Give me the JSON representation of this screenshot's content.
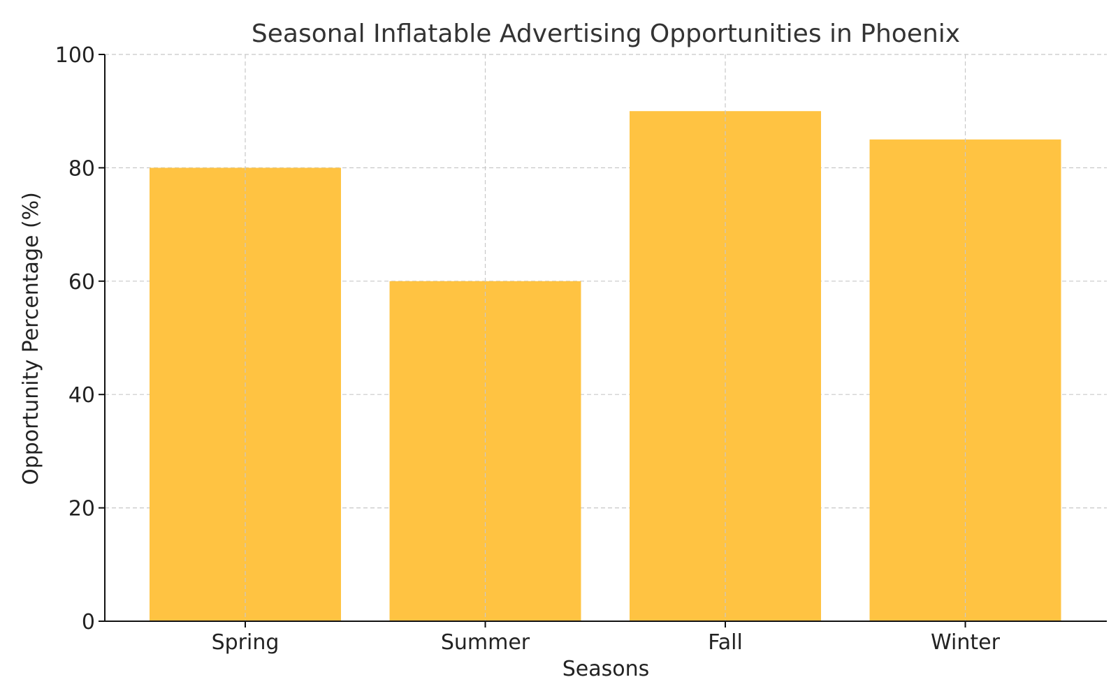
{
  "chart_data": {
    "type": "bar",
    "title": "Seasonal Inflatable Advertising Opportunities in Phoenix",
    "xlabel": "Seasons",
    "ylabel": "Opportunity Percentage (%)",
    "categories": [
      "Spring",
      "Summer",
      "Fall",
      "Winter"
    ],
    "values": [
      80,
      60,
      90,
      85
    ],
    "ylim": [
      0,
      100
    ],
    "yticks": [
      0,
      20,
      40,
      60,
      80,
      100
    ],
    "grid": true,
    "bar_color": "#ffc342",
    "legend": "none"
  }
}
